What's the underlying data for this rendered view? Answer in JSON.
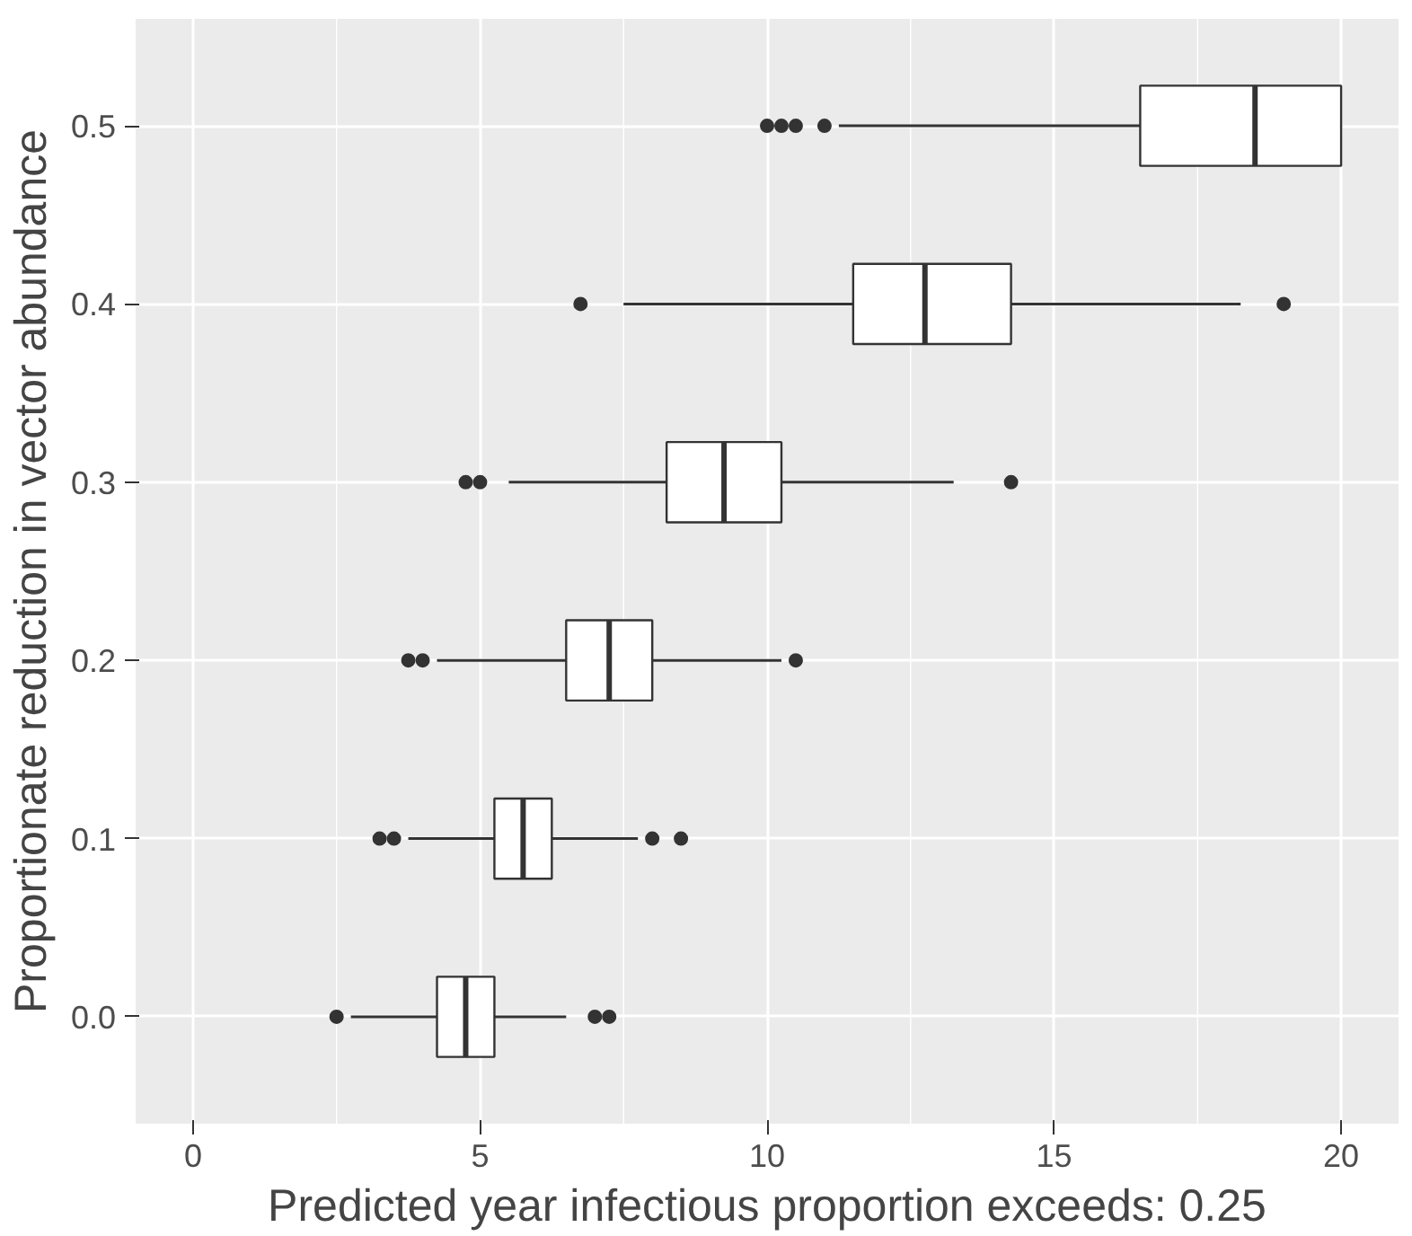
{
  "chart_data": {
    "type": "box",
    "orientation": "horizontal",
    "xlabel": "Predicted year infectious proportion exceeds: 0.25",
    "ylabel": "Proportionate reduction in vector abundance",
    "categories": [
      "0.5",
      "0.4",
      "0.3",
      "0.2",
      "0.1",
      "0.0"
    ],
    "boxes": [
      {
        "low": 11.25,
        "q1": 16.5,
        "median": 18.5,
        "q3": 20.0,
        "high": 20.0,
        "outliers": [
          10.0,
          10.25,
          10.5,
          11.0
        ]
      },
      {
        "low": 7.5,
        "q1": 11.5,
        "median": 12.75,
        "q3": 14.25,
        "high": 18.25,
        "outliers": [
          6.75,
          19.0
        ]
      },
      {
        "low": 5.5,
        "q1": 8.25,
        "median": 9.25,
        "q3": 10.25,
        "high": 13.25,
        "outliers": [
          4.75,
          5.0,
          14.25
        ]
      },
      {
        "low": 4.25,
        "q1": 6.5,
        "median": 7.25,
        "q3": 8.0,
        "high": 10.25,
        "outliers": [
          3.75,
          4.0,
          10.5
        ]
      },
      {
        "low": 3.75,
        "q1": 5.25,
        "median": 5.75,
        "q3": 6.25,
        "high": 7.75,
        "outliers": [
          3.25,
          3.5,
          8.0,
          8.5
        ]
      },
      {
        "low": 2.75,
        "q1": 4.25,
        "median": 4.75,
        "q3": 5.25,
        "high": 6.5,
        "outliers": [
          2.5,
          7.0,
          7.25
        ]
      }
    ],
    "xlim": [
      -1.0,
      21.0
    ],
    "xticks": [
      0,
      5,
      10,
      15,
      20
    ],
    "grid": true
  }
}
